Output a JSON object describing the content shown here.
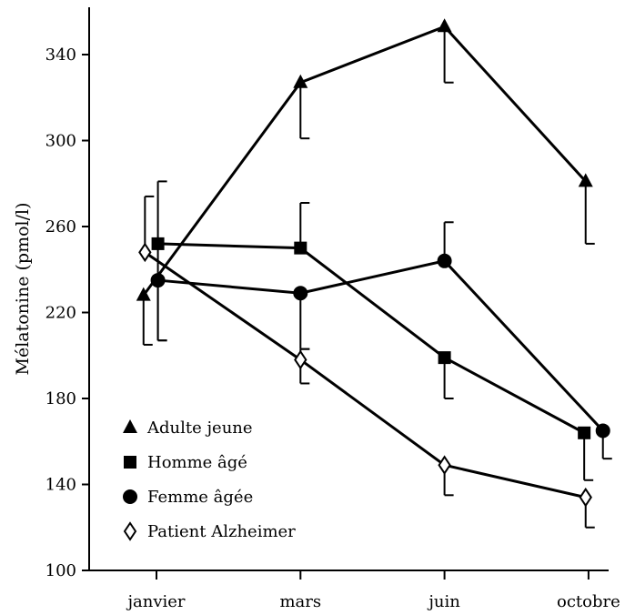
{
  "chart_data": {
    "type": "line",
    "title": "",
    "xlabel": "",
    "ylabel": "Mélatonine (pmol/l)",
    "categories": [
      "janvier",
      "mars",
      "juin",
      "octobre"
    ],
    "ylim": [
      100,
      360
    ],
    "yticks": [
      100,
      140,
      180,
      220,
      260,
      300,
      340
    ],
    "grid": false,
    "legend_position": "bottom-left",
    "series": [
      {
        "name": "Adulte jeune",
        "marker": "triangle",
        "x": [
          -0.09,
          1,
          2,
          2.98
        ],
        "values": [
          228,
          327,
          353,
          281
        ],
        "error": [
          {
            "up": 0,
            "down": 23
          },
          {
            "up": 0,
            "down": 26
          },
          {
            "up": 0,
            "down": 26
          },
          {
            "up": 0,
            "down": 29
          }
        ]
      },
      {
        "name": "Homme âgé",
        "marker": "square",
        "x": [
          0.01,
          1,
          2,
          2.97
        ],
        "values": [
          252,
          250,
          199,
          164
        ],
        "error": [
          {
            "up": 29,
            "down": 45
          },
          {
            "up": 21,
            "down": 0
          },
          {
            "up": 0,
            "down": 19
          },
          {
            "up": 0,
            "down": 22
          }
        ]
      },
      {
        "name": "Femme âgée",
        "marker": "circle",
        "x": [
          0.01,
          1,
          2,
          3.1
        ],
        "values": [
          235,
          229,
          244,
          165
        ],
        "error": [
          {
            "up": 0,
            "down": 28
          },
          {
            "up": 0,
            "down": 26
          },
          {
            "up": 18,
            "down": 0
          },
          {
            "up": 0,
            "down": 13
          }
        ]
      },
      {
        "name": "Patient Alzheimer",
        "marker": "diamond-open",
        "x": [
          -0.08,
          1,
          2,
          2.98
        ],
        "values": [
          248,
          198,
          149,
          134
        ],
        "error": [
          {
            "up": 26,
            "down": 0
          },
          {
            "up": 5,
            "down": 11
          },
          {
            "up": 0,
            "down": 14
          },
          {
            "up": 0,
            "down": 14
          }
        ]
      }
    ]
  }
}
